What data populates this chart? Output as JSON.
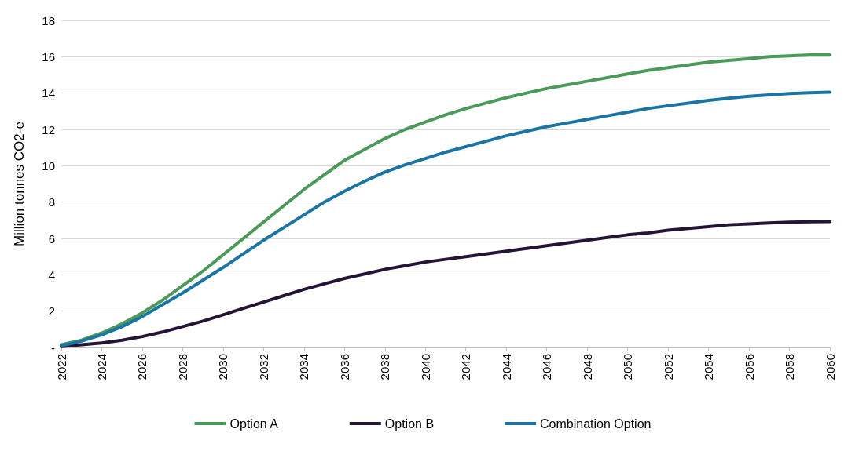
{
  "chart_data": {
    "type": "line",
    "ylabel": "Million tonnes CO2-e",
    "x": [
      2022,
      2023,
      2024,
      2025,
      2026,
      2027,
      2028,
      2029,
      2030,
      2031,
      2032,
      2033,
      2034,
      2035,
      2036,
      2037,
      2038,
      2039,
      2040,
      2041,
      2042,
      2043,
      2044,
      2045,
      2046,
      2047,
      2048,
      2049,
      2050,
      2051,
      2052,
      2053,
      2054,
      2055,
      2056,
      2057,
      2058,
      2059,
      2060
    ],
    "series": [
      {
        "name": "Option A",
        "color": "#4a9a5a",
        "values": [
          0.15,
          0.4,
          0.8,
          1.3,
          1.9,
          2.6,
          3.4,
          4.2,
          5.1,
          6.0,
          6.9,
          7.8,
          8.7,
          9.5,
          10.3,
          10.9,
          11.5,
          12.0,
          12.4,
          12.8,
          13.15,
          13.45,
          13.75,
          14.0,
          14.25,
          14.45,
          14.65,
          14.85,
          15.05,
          15.25,
          15.4,
          15.55,
          15.7,
          15.8,
          15.9,
          16.0,
          16.05,
          16.1,
          16.1
        ]
      },
      {
        "name": "Option B",
        "color": "#241436",
        "values": [
          0.05,
          0.15,
          0.25,
          0.4,
          0.6,
          0.85,
          1.15,
          1.45,
          1.8,
          2.15,
          2.5,
          2.85,
          3.2,
          3.5,
          3.8,
          4.05,
          4.3,
          4.5,
          4.7,
          4.85,
          5.0,
          5.15,
          5.3,
          5.45,
          5.6,
          5.75,
          5.9,
          6.05,
          6.2,
          6.3,
          6.45,
          6.55,
          6.65,
          6.75,
          6.8,
          6.85,
          6.9,
          6.92,
          6.93
        ]
      },
      {
        "name": "Combination Option",
        "color": "#1a75a5",
        "values": [
          0.1,
          0.35,
          0.7,
          1.15,
          1.7,
          2.35,
          3.0,
          3.7,
          4.4,
          5.15,
          5.9,
          6.6,
          7.3,
          8.0,
          8.6,
          9.15,
          9.65,
          10.05,
          10.4,
          10.75,
          11.05,
          11.35,
          11.65,
          11.9,
          12.15,
          12.35,
          12.55,
          12.75,
          12.95,
          13.15,
          13.3,
          13.45,
          13.6,
          13.72,
          13.82,
          13.9,
          13.97,
          14.02,
          14.05
        ]
      }
    ],
    "xlim": [
      2022,
      2060
    ],
    "xticks": [
      2022,
      2024,
      2026,
      2028,
      2030,
      2032,
      2034,
      2036,
      2038,
      2040,
      2042,
      2044,
      2046,
      2048,
      2050,
      2052,
      2054,
      2056,
      2058,
      2060
    ],
    "ylim": [
      0,
      18
    ],
    "yticks": [
      {
        "value": 0,
        "label": "-"
      },
      2,
      4,
      6,
      8,
      10,
      12,
      14,
      16,
      18
    ],
    "grid": "y",
    "legend": "bottom",
    "marker": "none",
    "line_style": "solid"
  }
}
